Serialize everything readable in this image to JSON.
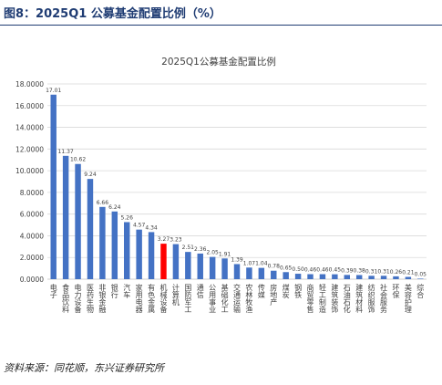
{
  "figure": {
    "label": "图8：",
    "caption": "2025Q1 公募基金配置比例（%）",
    "source": "资料来源：同花顺，东兴证券研究所"
  },
  "colors": {
    "bar": "#4472c4",
    "highlight": "#ff0000",
    "header": "#1f3c73",
    "grid": "#d9d9d9"
  },
  "chart_data": {
    "type": "bar",
    "title": "2025Q1公募基金配置比例",
    "xlabel": "",
    "ylabel": "",
    "ylim": [
      0,
      18
    ],
    "yticks": [
      "0.0000",
      "2.0000",
      "4.0000",
      "6.0000",
      "8.0000",
      "10.0000",
      "12.0000",
      "14.0000",
      "16.0000",
      "18.0000"
    ],
    "grid": "horizontal",
    "legend": "none",
    "highlight_category": "机械设备",
    "categories": [
      "电子",
      "食品饮料",
      "电力设备",
      "医药生物",
      "非银金融",
      "银行",
      "汽车",
      "家用电器",
      "有色金属",
      "机械设备",
      "计算机",
      "国防军工",
      "通信",
      "公用事业",
      "基础化工",
      "交通运输",
      "农林牧渔",
      "传媒",
      "房地产",
      "煤炭",
      "钢铁",
      "商贸零售",
      "轻工制造",
      "建筑装饰",
      "石油石化",
      "建筑材料",
      "纺织服饰",
      "社会服务",
      "环保",
      "美容护理",
      "综合"
    ],
    "values": [
      17.01,
      11.37,
      10.62,
      9.24,
      6.66,
      6.24,
      5.26,
      4.57,
      4.34,
      3.27,
      3.23,
      2.51,
      2.36,
      2.05,
      1.91,
      1.39,
      1.07,
      1.04,
      0.78,
      0.65,
      0.5,
      0.46,
      0.46,
      0.45,
      0.39,
      0.38,
      0.31,
      0.31,
      0.26,
      0.21,
      0.05
    ],
    "data_labels": [
      "17.01",
      "11.37",
      "10.62",
      "9.24",
      "6.66",
      "6.24",
      "5.26",
      "4.57",
      "4.34",
      "3.27",
      "3.23",
      "2.51",
      "2.36",
      "2.05",
      "1.91",
      "1.39",
      "1.07",
      "1.04",
      "0.78",
      "0.65",
      "0.50",
      "0.46",
      "0.46",
      "0.45",
      "0.39",
      "0.38",
      "0.31",
      "0.31",
      "0.26",
      "0.21",
      "0.05"
    ]
  }
}
